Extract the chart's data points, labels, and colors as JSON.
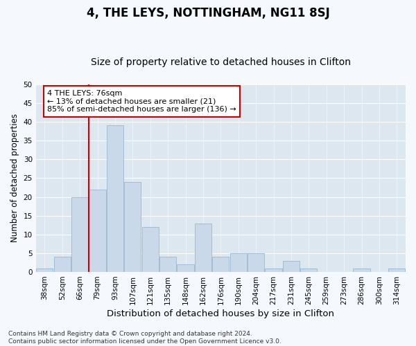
{
  "title": "4, THE LEYS, NOTTINGHAM, NG11 8SJ",
  "subtitle": "Size of property relative to detached houses in Clifton",
  "xlabel": "Distribution of detached houses by size in Clifton",
  "ylabel": "Number of detached properties",
  "categories": [
    "38sqm",
    "52sqm",
    "66sqm",
    "79sqm",
    "93sqm",
    "107sqm",
    "121sqm",
    "135sqm",
    "148sqm",
    "162sqm",
    "176sqm",
    "190sqm",
    "204sqm",
    "217sqm",
    "231sqm",
    "245sqm",
    "259sqm",
    "273sqm",
    "286sqm",
    "300sqm",
    "314sqm"
  ],
  "values": [
    1,
    4,
    20,
    22,
    39,
    24,
    12,
    4,
    2,
    13,
    4,
    5,
    5,
    1,
    3,
    1,
    0,
    0,
    1,
    0,
    1
  ],
  "bar_color": "#c9d9ea",
  "bar_edge_color": "#9ab8d0",
  "vline_color": "#cc0000",
  "annotation_text": "4 THE LEYS: 76sqm\n← 13% of detached houses are smaller (21)\n85% of semi-detached houses are larger (136) →",
  "annotation_box_facecolor": "#ffffff",
  "annotation_box_edgecolor": "#cc0000",
  "ylim": [
    0,
    50
  ],
  "yticks": [
    0,
    5,
    10,
    15,
    20,
    25,
    30,
    35,
    40,
    45,
    50
  ],
  "fig_facecolor": "#f5f8fc",
  "plot_facecolor": "#dde7f0",
  "grid_color": "#ffffff",
  "title_fontsize": 12,
  "subtitle_fontsize": 10,
  "xlabel_fontsize": 9.5,
  "ylabel_fontsize": 8.5,
  "tick_fontsize": 7.5,
  "annotation_fontsize": 8,
  "footer_fontsize": 6.5,
  "footer_text": "Contains HM Land Registry data © Crown copyright and database right 2024.\nContains public sector information licensed under the Open Government Licence v3.0."
}
